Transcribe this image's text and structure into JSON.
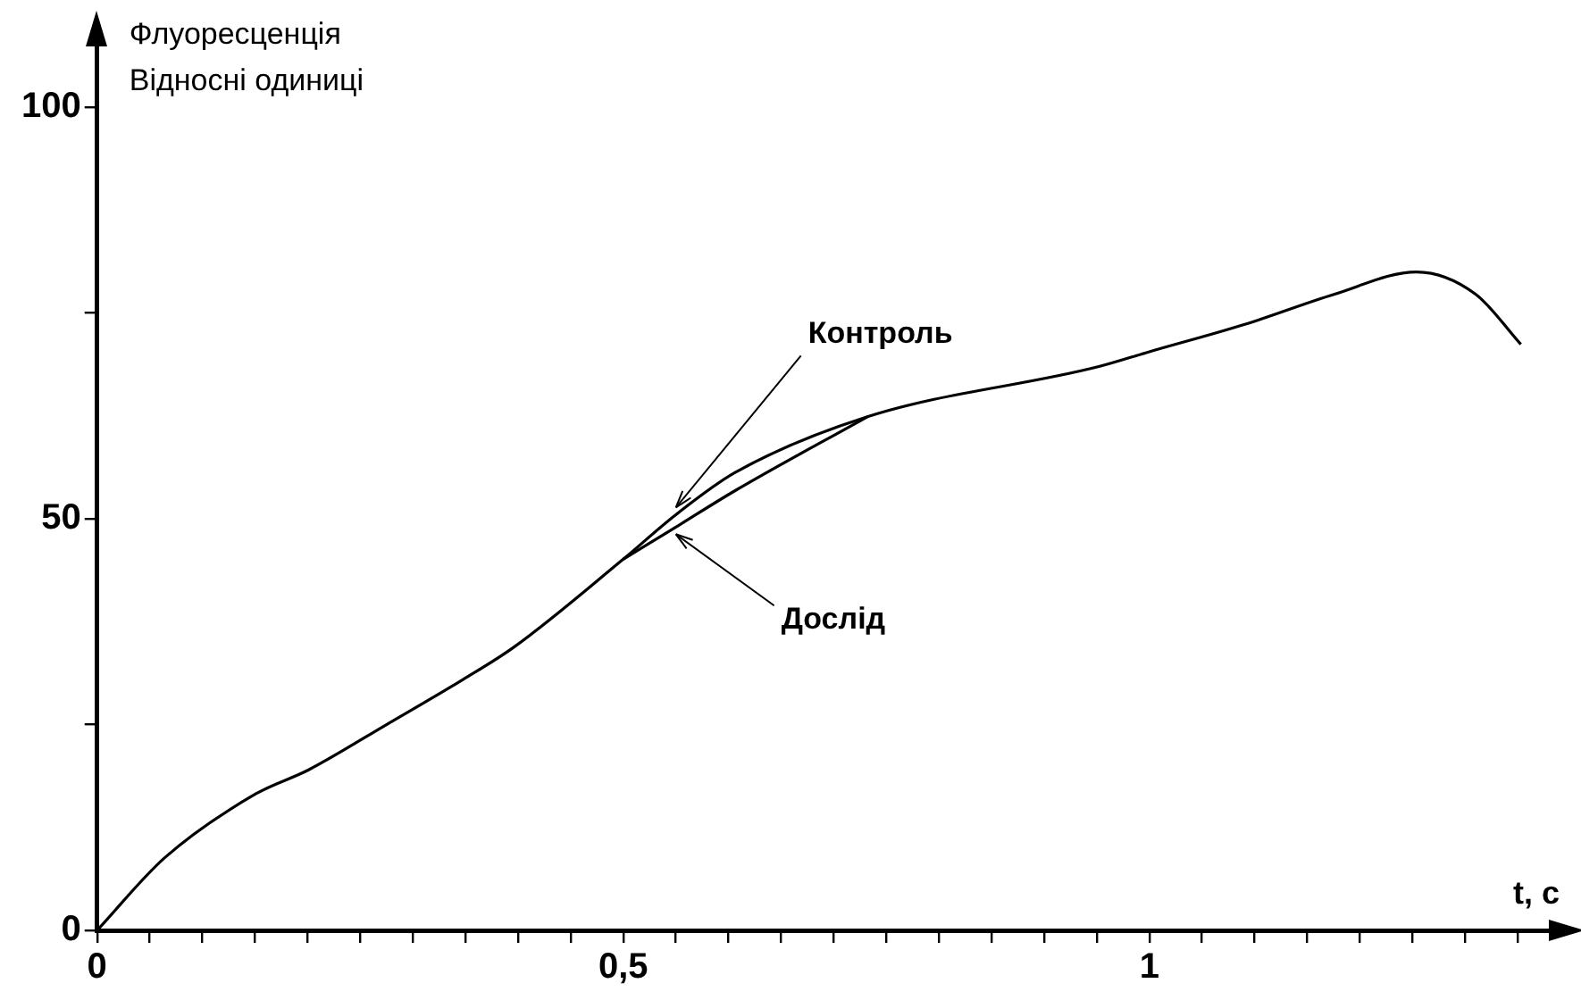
{
  "chart_data": {
    "type": "line",
    "ylabel": "Флуоресценція\nВідносні одиниці",
    "xlabel": "t, с",
    "x": [
      0,
      0.064,
      0.151,
      0.201,
      0.275,
      0.348,
      0.396,
      0.5,
      0.55,
      0.606,
      0.732,
      0.952,
      1.0,
      1.09,
      1.176,
      1.254,
      1.31,
      1.353
    ],
    "series": [
      {
        "name": "Контроль",
        "color": "#000000",
        "values": [
          0,
          8.8,
          16.6,
          19.5,
          25.0,
          30.5,
          34.4,
          45.1,
          50.5,
          55.6,
          62.4,
          68.5,
          70.3,
          73.6,
          77.3,
          80.0,
          77.3,
          71.2
        ]
      },
      {
        "name": "Дослід",
        "color": "#000000",
        "x": [
          0.5,
          0.55,
          0.606,
          0.732
        ],
        "values": [
          45.1,
          49.0,
          53.4,
          62.4
        ]
      }
    ],
    "xlim": [
      0,
      1.4
    ],
    "ylim": [
      0,
      110
    ],
    "xticks": [
      0,
      {
        "value": 0.05,
        "label": null
      },
      {
        "value": 0.1,
        "label": null
      },
      {
        "value": 0.15,
        "label": null
      },
      {
        "value": 0.2,
        "label": null
      },
      {
        "value": 0.25,
        "label": null
      },
      {
        "value": 0.3,
        "label": null
      },
      {
        "value": 0.35,
        "label": null
      },
      {
        "value": 0.4,
        "label": null
      },
      {
        "value": 0.45,
        "label": null
      },
      {
        "value": 0.5,
        "label": "0,5"
      },
      {
        "value": 0.55,
        "label": null
      },
      {
        "value": 0.6,
        "label": null
      },
      {
        "value": 0.65,
        "label": null
      },
      {
        "value": 0.7,
        "label": null
      },
      {
        "value": 0.75,
        "label": null
      },
      {
        "value": 0.8,
        "label": null
      },
      {
        "value": 0.85,
        "label": null
      },
      {
        "value": 0.9,
        "label": null
      },
      {
        "value": 0.95,
        "label": null
      },
      1,
      {
        "value": 1.05,
        "label": null
      },
      {
        "value": 1.1,
        "label": null
      },
      {
        "value": 1.15,
        "label": null
      },
      {
        "value": 1.2,
        "label": null
      },
      {
        "value": 1.25,
        "label": null
      },
      {
        "value": 1.3,
        "label": null
      },
      {
        "value": 1.35,
        "label": null
      }
    ],
    "yticks": [
      0,
      {
        "value": 25,
        "label": null
      },
      50,
      {
        "value": 75,
        "label": null
      },
      100
    ],
    "grid": false,
    "legend": false,
    "marker": "none",
    "line_style": "solid"
  }
}
